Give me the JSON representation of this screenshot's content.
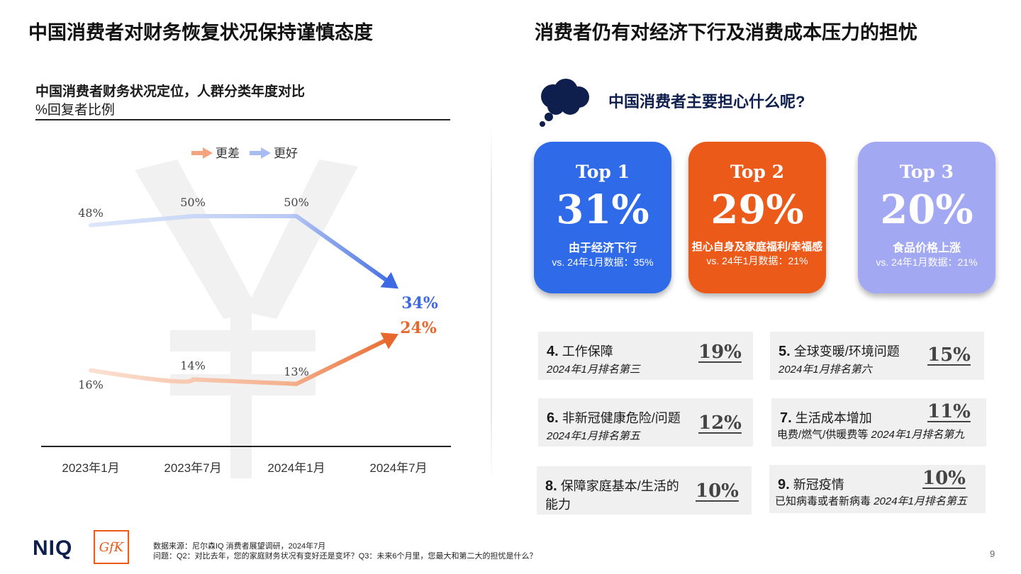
{
  "left_heading": "中国消费者对财务恢复状况保持谨慎态度",
  "right_heading": "消费者仍有对经济下行及消费成本压力的担忧",
  "chart_data": {
    "type": "line",
    "title": "中国消费者财务状况定位，人群分类年度对比",
    "subtitle": "%回复者比例",
    "categories": [
      "2023年1月",
      "2023年7月",
      "2024年1月",
      "2024年7月"
    ],
    "series": [
      {
        "name": "更差",
        "values": [
          16,
          14,
          13,
          24
        ],
        "labels": [
          "16%",
          "14%",
          "13%",
          "24%"
        ],
        "color": "#e8733a"
      },
      {
        "name": "更好",
        "values": [
          48,
          50,
          50,
          34
        ],
        "labels": [
          "48%",
          "50%",
          "50%",
          "34%"
        ],
        "color": "#4a72e0"
      }
    ],
    "ylim": [
      0,
      60
    ],
    "grid": false,
    "legend": "top"
  },
  "worry": {
    "question": "中国消费者主要担心什么呢?",
    "top": [
      {
        "rank": "Top 1",
        "pct": "31%",
        "label": "由于经济下行",
        "vs": "vs. 24年1月数据：35%",
        "color": "#2f6ae8"
      },
      {
        "rank": "Top 2",
        "pct": "29%",
        "label": "担心自身及家庭福利/幸福感",
        "vs": "vs. 24年1月数据：21%",
        "color": "#ec5a1a"
      },
      {
        "rank": "Top 3",
        "pct": "20%",
        "label": "食品价格上涨",
        "vs": "vs. 24年1月数据：21%",
        "color": "#a3a8f2"
      }
    ],
    "items": [
      {
        "num": "4.",
        "name": "工作保障",
        "note": "2024年1月排名第三",
        "value": "19%"
      },
      {
        "num": "5.",
        "name": "全球变暖/环境问题",
        "note": "2024年1月排名第六",
        "value": "15%"
      },
      {
        "num": "6.",
        "name": "非新冠健康危险/问题",
        "note": "2024年1月排名第五",
        "value": "12%"
      },
      {
        "num": "7.",
        "name": "生活成本增加",
        "sub": "电费/燃气/供暖费等",
        "note": "2024年1月排名第九",
        "value": "11%"
      },
      {
        "num": "8.",
        "name": "保障家庭基本/生活的",
        "name2": "能力",
        "value": "10%"
      },
      {
        "num": "9.",
        "name": "新冠疫情",
        "sub": "已知病毒或者新病毒",
        "note": "2024年1月排名第五",
        "value": "10%"
      }
    ]
  },
  "footer": {
    "source": "数据来源：尼尔森IQ 消费者展望调研，2024年7月",
    "questions": "问题：Q2：对比去年，您的家庭财务状况有变好还是变坏？Q3：未来6个月里，您最大和第二大的担忧是什么？",
    "page": "9",
    "logo1": "NIQ",
    "logo2": "GfK"
  }
}
